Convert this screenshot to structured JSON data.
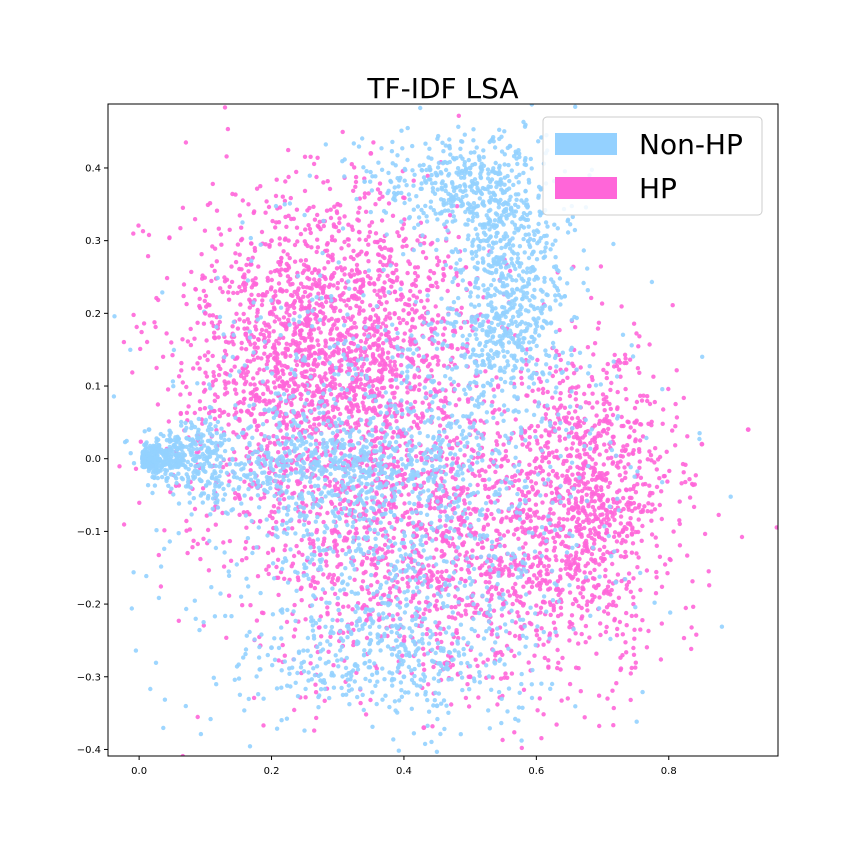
{
  "chart_data": {
    "type": "scatter",
    "title": "TF-IDF LSA",
    "xlabel": "",
    "ylabel": "",
    "xlim": [
      -0.047,
      0.965
    ],
    "ylim": [
      -0.409,
      0.488
    ],
    "xticks": [
      0.0,
      0.2,
      0.4,
      0.6,
      0.8
    ],
    "xtick_labels": [
      "0.0",
      "0.2",
      "0.4",
      "0.6",
      "0.8"
    ],
    "yticks": [
      0.4,
      0.3,
      0.2,
      0.1,
      0.0,
      -0.1,
      -0.2,
      -0.3,
      -0.4
    ],
    "ytick_labels": [
      "0.4",
      "0.3",
      "0.2",
      "0.1",
      "0.0",
      "−0.1",
      "−0.2",
      "−0.3",
      "−0.4"
    ],
    "grid": false,
    "legend_position": "top-right",
    "series": [
      {
        "name": "Non-HP",
        "color": "#94d1ff",
        "representative_points": [
          [
            0.005,
            0.0
          ],
          [
            0.01,
            0.02
          ],
          [
            0.015,
            0.04
          ],
          [
            0.02,
            -0.01
          ],
          [
            0.03,
            0.01
          ],
          [
            0.1,
            0.05
          ],
          [
            0.15,
            0.03
          ],
          [
            0.2,
            0.0
          ],
          [
            0.3,
            -0.05
          ],
          [
            0.35,
            0.02
          ],
          [
            0.45,
            0.39
          ],
          [
            0.5,
            0.4
          ],
          [
            0.55,
            0.35
          ],
          [
            0.56,
            0.3
          ],
          [
            0.55,
            0.2
          ],
          [
            0.6,
            0.25
          ],
          [
            0.58,
            0.15
          ],
          [
            0.52,
            0.1
          ],
          [
            0.35,
            -0.25
          ],
          [
            0.4,
            -0.3
          ],
          [
            0.2,
            -0.26
          ],
          [
            0.45,
            -0.34
          ],
          [
            0.72,
            -0.17
          ],
          [
            0.56,
            0.43
          ]
        ]
      },
      {
        "name": "HP",
        "color": "#ff66d9",
        "representative_points": [
          [
            0.1,
            0.2
          ],
          [
            0.2,
            0.3
          ],
          [
            0.3,
            0.35
          ],
          [
            0.4,
            0.3
          ],
          [
            0.25,
            0.1
          ],
          [
            0.35,
            0.0
          ],
          [
            0.45,
            -0.1
          ],
          [
            0.55,
            -0.2
          ],
          [
            0.6,
            0.0
          ],
          [
            0.7,
            -0.05
          ],
          [
            0.75,
            0.05
          ],
          [
            0.65,
            -0.15
          ],
          [
            0.5,
            0.05
          ],
          [
            0.15,
            -0.05
          ],
          [
            0.3,
            -0.2
          ],
          [
            0.4,
            -0.25
          ],
          [
            0.5,
            -0.3
          ],
          [
            0.68,
            0.1
          ],
          [
            0.85,
            0.02
          ],
          [
            0.43,
            -0.37
          ],
          [
            0.92,
            0.04
          ],
          [
            0.35,
            0.42
          ]
        ]
      }
    ]
  },
  "legend": {
    "items": [
      {
        "label": "Non-HP",
        "color": "#94d1ff"
      },
      {
        "label": "HP",
        "color": "#ff66d9"
      }
    ]
  }
}
